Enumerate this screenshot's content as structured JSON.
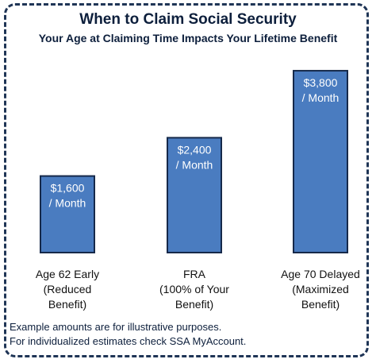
{
  "chart_data": {
    "type": "bar",
    "title": "When to Claim Social Security",
    "subtitle": "Your Age at Claiming Time Impacts Your Lifetime Benefit",
    "categories": [
      [
        "Age 62 Early",
        "(Reduced",
        "Benefit)"
      ],
      [
        "FRA",
        "(100% of Your",
        "Benefit)"
      ],
      [
        "Age 70 Delayed",
        "(Maximized",
        "Benefit)"
      ]
    ],
    "values": [
      1600,
      2400,
      3800
    ],
    "data_labels": [
      [
        "$1,600",
        "/ Month"
      ],
      [
        "$2,400",
        "/ Month"
      ],
      [
        "$3,800",
        "/ Month"
      ]
    ],
    "ylim": [
      0,
      4000
    ],
    "grid": false,
    "bar_color": "#4a7cc0",
    "bar_border_color": "#16294a"
  },
  "footnotes": [
    "Example amounts are for illustrative purposes.",
    "For individualized estimates check SSA MyAccount."
  ],
  "colors": {
    "text": "#0d1f3c",
    "frame": "#1f3556"
  }
}
